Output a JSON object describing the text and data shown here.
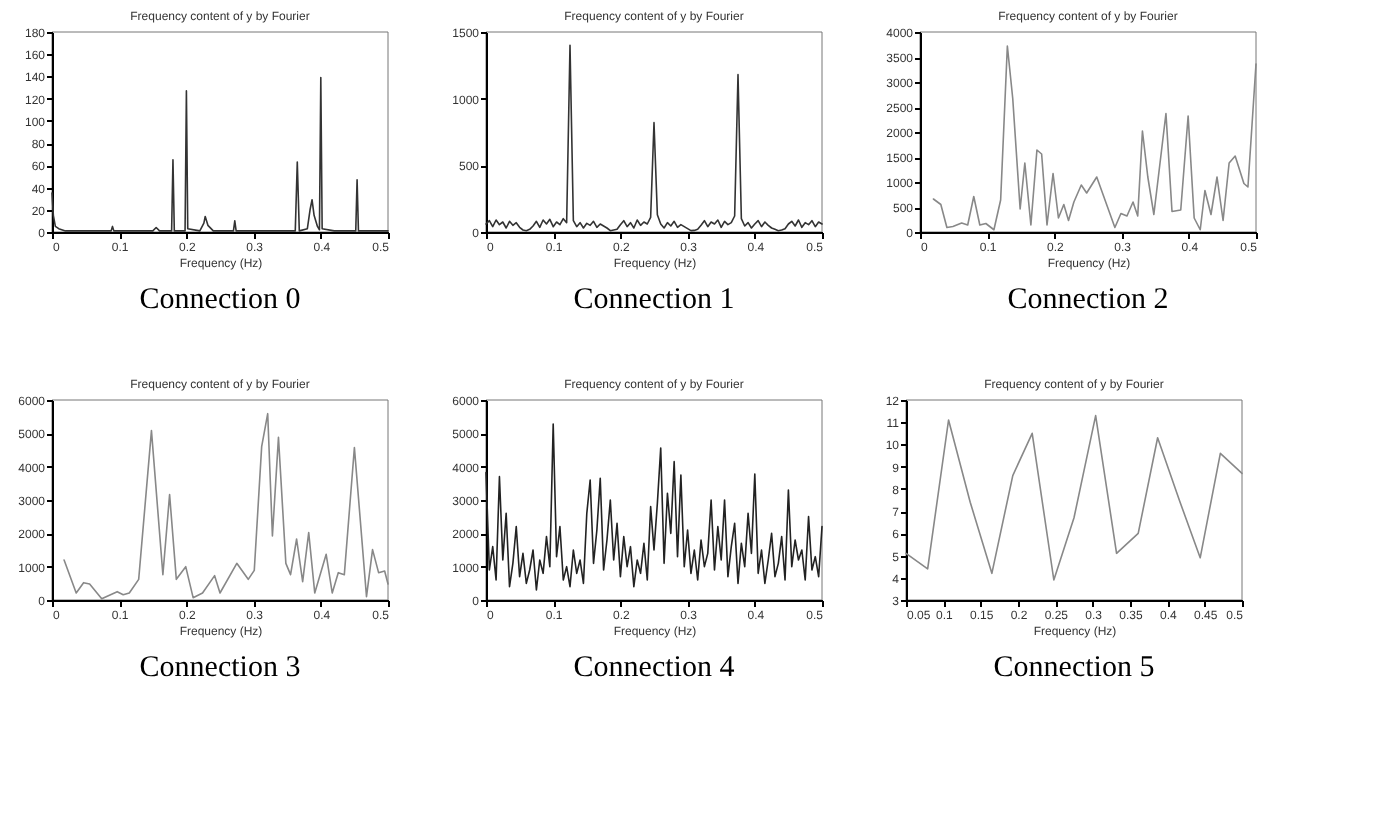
{
  "chart_data": [
    {
      "type": "line",
      "title": "Frequency content of y by Fourier",
      "xlabel": "Frequency (Hz)",
      "annotations": [
        "Connection 0"
      ],
      "grid": false,
      "xlim": [
        0,
        0.5
      ],
      "xticks": [
        0,
        0.1,
        0.2,
        0.3,
        0.4,
        0.5
      ],
      "ylim": [
        0,
        180
      ],
      "yticks": [
        0,
        20,
        40,
        60,
        80,
        100,
        120,
        140,
        160,
        180
      ],
      "x": [
        0,
        0.002,
        0.005,
        0.01,
        0.02,
        0.05,
        0.088,
        0.09,
        0.092,
        0.15,
        0.155,
        0.16,
        0.178,
        0.18,
        0.182,
        0.198,
        0.2,
        0.202,
        0.22,
        0.226,
        0.228,
        0.232,
        0.24,
        0.27,
        0.272,
        0.274,
        0.3,
        0.35,
        0.362,
        0.365,
        0.368,
        0.38,
        0.384,
        0.387,
        0.39,
        0.395,
        0.398,
        0.4,
        0.402,
        0.42,
        0.452,
        0.454,
        0.456,
        0.48,
        0.5
      ],
      "series": [
        {
          "color": "#333333",
          "values": [
            35,
            15,
            5,
            3,
            1,
            1,
            1,
            5,
            1,
            1,
            4,
            1,
            1,
            65,
            1,
            1,
            127,
            3,
            1,
            8,
            14,
            6,
            1,
            1,
            10,
            1,
            1,
            1,
            1,
            63,
            1,
            3,
            20,
            29,
            15,
            5,
            2,
            139,
            3,
            1,
            1,
            47,
            1,
            1,
            1
          ]
        }
      ]
    },
    {
      "type": "line",
      "title": "Frequency content of y by Fourier",
      "xlabel": "Frequency (Hz)",
      "annotations": [
        "Connection 1"
      ],
      "grid": false,
      "xlim": [
        0,
        0.5
      ],
      "xticks": [
        0,
        0.1,
        0.2,
        0.3,
        0.4,
        0.5
      ],
      "ylim": [
        0,
        1500
      ],
      "yticks": [
        0,
        500,
        1000,
        1500
      ],
      "x": [
        0,
        0.005,
        0.01,
        0.015,
        0.02,
        0.025,
        0.03,
        0.035,
        0.04,
        0.045,
        0.05,
        0.055,
        0.06,
        0.065,
        0.07,
        0.075,
        0.08,
        0.085,
        0.09,
        0.095,
        0.1,
        0.105,
        0.11,
        0.115,
        0.12,
        0.125,
        0.13,
        0.135,
        0.14,
        0.145,
        0.15,
        0.155,
        0.16,
        0.165,
        0.17,
        0.175,
        0.18,
        0.185,
        0.19,
        0.195,
        0.2,
        0.205,
        0.21,
        0.215,
        0.22,
        0.225,
        0.23,
        0.235,
        0.24,
        0.245,
        0.25,
        0.255,
        0.26,
        0.265,
        0.27,
        0.275,
        0.28,
        0.285,
        0.29,
        0.295,
        0.3,
        0.305,
        0.31,
        0.315,
        0.32,
        0.325,
        0.33,
        0.335,
        0.34,
        0.345,
        0.35,
        0.355,
        0.36,
        0.365,
        0.37,
        0.375,
        0.38,
        0.385,
        0.39,
        0.395,
        0.4,
        0.405,
        0.41,
        0.415,
        0.42,
        0.425,
        0.43,
        0.435,
        0.44,
        0.445,
        0.45,
        0.455,
        0.46,
        0.465,
        0.47,
        0.475,
        0.48,
        0.485,
        0.49,
        0.495,
        0.5
      ],
      "series": [
        {
          "color": "#333333",
          "values": [
            60,
            85,
            40,
            90,
            55,
            75,
            30,
            80,
            50,
            70,
            35,
            15,
            10,
            20,
            45,
            80,
            35,
            90,
            60,
            95,
            40,
            75,
            55,
            100,
            70,
            1400,
            85,
            40,
            70,
            30,
            65,
            50,
            80,
            35,
            60,
            45,
            30,
            10,
            15,
            20,
            55,
            85,
            40,
            70,
            30,
            90,
            50,
            75,
            60,
            110,
            820,
            130,
            60,
            30,
            70,
            45,
            80,
            35,
            55,
            40,
            25,
            10,
            12,
            20,
            50,
            85,
            40,
            75,
            60,
            90,
            35,
            80,
            55,
            70,
            120,
            1180,
            100,
            45,
            70,
            30,
            60,
            85,
            40,
            75,
            50,
            30,
            20,
            10,
            15,
            25,
            60,
            80,
            45,
            90,
            35,
            70,
            55,
            85,
            40,
            75,
            60
          ]
        }
      ]
    },
    {
      "type": "line",
      "title": "Frequency content of y by Fourier",
      "xlabel": "Frequency (Hz)",
      "annotations": [
        "Connection 2"
      ],
      "grid": false,
      "xlim": [
        0,
        0.5
      ],
      "xticks": [
        0,
        0.1,
        0.2,
        0.3,
        0.4,
        0.5
      ],
      "ylim": [
        0,
        4000
      ],
      "yticks": [
        0,
        500,
        1000,
        1500,
        2000,
        2500,
        3000,
        3500,
        4000
      ],
      "x": [
        0.02,
        0.031,
        0.04,
        0.049,
        0.062,
        0.071,
        0.08,
        0.089,
        0.098,
        0.11,
        0.12,
        0.13,
        0.138,
        0.149,
        0.156,
        0.165,
        0.174,
        0.181,
        0.189,
        0.198,
        0.206,
        0.214,
        0.221,
        0.229,
        0.24,
        0.248,
        0.263,
        0.29,
        0.299,
        0.308,
        0.317,
        0.324,
        0.331,
        0.339,
        0.348,
        0.366,
        0.375,
        0.388,
        0.399,
        0.408,
        0.417,
        0.424,
        0.433,
        0.442,
        0.451,
        0.46,
        0.469,
        0.482,
        0.488,
        0.5
      ],
      "series": [
        {
          "color": "#888888",
          "values": [
            660,
            550,
            90,
            110,
            180,
            140,
            710,
            140,
            170,
            45,
            640,
            3720,
            2670,
            460,
            1380,
            140,
            1640,
            1560,
            140,
            1170,
            280,
            550,
            230,
            600,
            940,
            780,
            1100,
            90,
            370,
            320,
            600,
            320,
            2020,
            1100,
            350,
            2370,
            410,
            440,
            2320,
            280,
            45,
            830,
            350,
            1100,
            230,
            1380,
            1520,
            970,
            900,
            3360
          ]
        }
      ]
    },
    {
      "type": "line",
      "title": "Frequency content of y by Fourier",
      "xlabel": "Frequency (Hz)",
      "annotations": [
        "Connection 3"
      ],
      "grid": false,
      "xlim": [
        0,
        0.5
      ],
      "xticks": [
        0,
        0.1,
        0.2,
        0.3,
        0.4,
        0.5
      ],
      "ylim": [
        0,
        6000
      ],
      "yticks": [
        0,
        1000,
        2000,
        3000,
        4000,
        5000,
        6000
      ],
      "x": [
        0.018,
        0.036,
        0.047,
        0.056,
        0.074,
        0.097,
        0.106,
        0.115,
        0.129,
        0.148,
        0.165,
        0.175,
        0.185,
        0.199,
        0.21,
        0.224,
        0.242,
        0.25,
        0.275,
        0.292,
        0.301,
        0.312,
        0.321,
        0.328,
        0.337,
        0.348,
        0.355,
        0.364,
        0.373,
        0.382,
        0.391,
        0.408,
        0.417,
        0.426,
        0.435,
        0.45,
        0.468,
        0.477,
        0.486,
        0.495,
        0.5
      ],
      "series": [
        {
          "color": "#888888",
          "values": [
            1200,
            210,
            520,
            480,
            40,
            250,
            160,
            210,
            620,
            5080,
            760,
            3160,
            620,
            1000,
            70,
            210,
            730,
            210,
            1100,
            620,
            890,
            4600,
            5590,
            1920,
            4880,
            1100,
            760,
            1830,
            550,
            2020,
            210,
            1370,
            210,
            820,
            760,
            4570,
            100,
            1510,
            820,
            870,
            480
          ]
        }
      ]
    },
    {
      "type": "line",
      "title": "Frequency content of y by Fourier",
      "xlabel": "Frequency (Hz)",
      "annotations": [
        "Connection 4"
      ],
      "grid": false,
      "xlim": [
        0,
        0.5
      ],
      "xticks": [
        0,
        0.1,
        0.2,
        0.3,
        0.4,
        0.5
      ],
      "ylim": [
        0,
        6000
      ],
      "yticks": [
        0,
        1000,
        2000,
        3000,
        4000,
        5000,
        6000
      ],
      "x": [
        0,
        0.005,
        0.01,
        0.015,
        0.02,
        0.025,
        0.03,
        0.035,
        0.04,
        0.045,
        0.05,
        0.055,
        0.06,
        0.065,
        0.07,
        0.075,
        0.08,
        0.085,
        0.09,
        0.095,
        0.1,
        0.105,
        0.11,
        0.115,
        0.12,
        0.125,
        0.13,
        0.135,
        0.14,
        0.145,
        0.15,
        0.155,
        0.16,
        0.165,
        0.17,
        0.175,
        0.18,
        0.185,
        0.19,
        0.195,
        0.2,
        0.205,
        0.21,
        0.215,
        0.22,
        0.225,
        0.23,
        0.235,
        0.24,
        0.245,
        0.25,
        0.255,
        0.26,
        0.265,
        0.27,
        0.275,
        0.28,
        0.285,
        0.29,
        0.295,
        0.3,
        0.305,
        0.31,
        0.315,
        0.32,
        0.325,
        0.33,
        0.335,
        0.34,
        0.345,
        0.35,
        0.355,
        0.36,
        0.365,
        0.37,
        0.375,
        0.38,
        0.385,
        0.39,
        0.395,
        0.4,
        0.405,
        0.41,
        0.415,
        0.42,
        0.425,
        0.43,
        0.435,
        0.44,
        0.445,
        0.45,
        0.455,
        0.46,
        0.465,
        0.47,
        0.475,
        0.48,
        0.485,
        0.49,
        0.495,
        0.5
      ],
      "series": [
        {
          "color": "#222222",
          "values": [
            3820,
            900,
            1600,
            600,
            3700,
            1200,
            2600,
            400,
            1100,
            2200,
            700,
            1400,
            500,
            900,
            1500,
            300,
            1200,
            800,
            1900,
            1000,
            5280,
            1300,
            2200,
            600,
            1000,
            400,
            1500,
            800,
            1200,
            500,
            2600,
            3600,
            1100,
            2100,
            3650,
            900,
            1800,
            3000,
            1200,
            2300,
            700,
            1900,
            1000,
            1600,
            400,
            1200,
            800,
            1700,
            600,
            2800,
            1500,
            2900,
            4560,
            1100,
            3200,
            2000,
            4150,
            1300,
            3750,
            1000,
            2100,
            800,
            1500,
            600,
            1800,
            1000,
            1400,
            3000,
            900,
            2200,
            1200,
            3000,
            700,
            1600,
            2300,
            500,
            1700,
            1000,
            2600,
            1400,
            3780,
            800,
            1500,
            500,
            1200,
            2000,
            700,
            1100,
            1900,
            600,
            3300,
            1000,
            1800,
            1200,
            1500,
            600,
            2500,
            900,
            1300,
            700,
            2200
          ]
        }
      ]
    },
    {
      "type": "line",
      "title": "Frequency content of y by Fourier",
      "xlabel": "Frequency (Hz)",
      "annotations": [
        "Connection 5"
      ],
      "grid": false,
      "xlim": [
        0.05,
        0.5
      ],
      "xticks": [
        0.05,
        0.1,
        0.15,
        0.2,
        0.25,
        0.3,
        0.35,
        0.4,
        0.45,
        0.5
      ],
      "ylim": [
        3,
        12
      ],
      "yticks": [
        3,
        4,
        5,
        6,
        7,
        8,
        9,
        10,
        11,
        12
      ],
      "x": [
        0.05,
        0.079,
        0.107,
        0.136,
        0.165,
        0.193,
        0.219,
        0.248,
        0.275,
        0.304,
        0.332,
        0.361,
        0.387,
        0.416,
        0.444,
        0.471,
        0.5
      ],
      "series": [
        {
          "color": "#888888",
          "values": [
            5.1,
            4.4,
            11.1,
            7.4,
            4.2,
            8.6,
            10.5,
            3.9,
            6.7,
            11.3,
            5.1,
            6.0,
            10.3,
            7.5,
            4.9,
            9.6,
            8.7
          ]
        }
      ]
    }
  ]
}
